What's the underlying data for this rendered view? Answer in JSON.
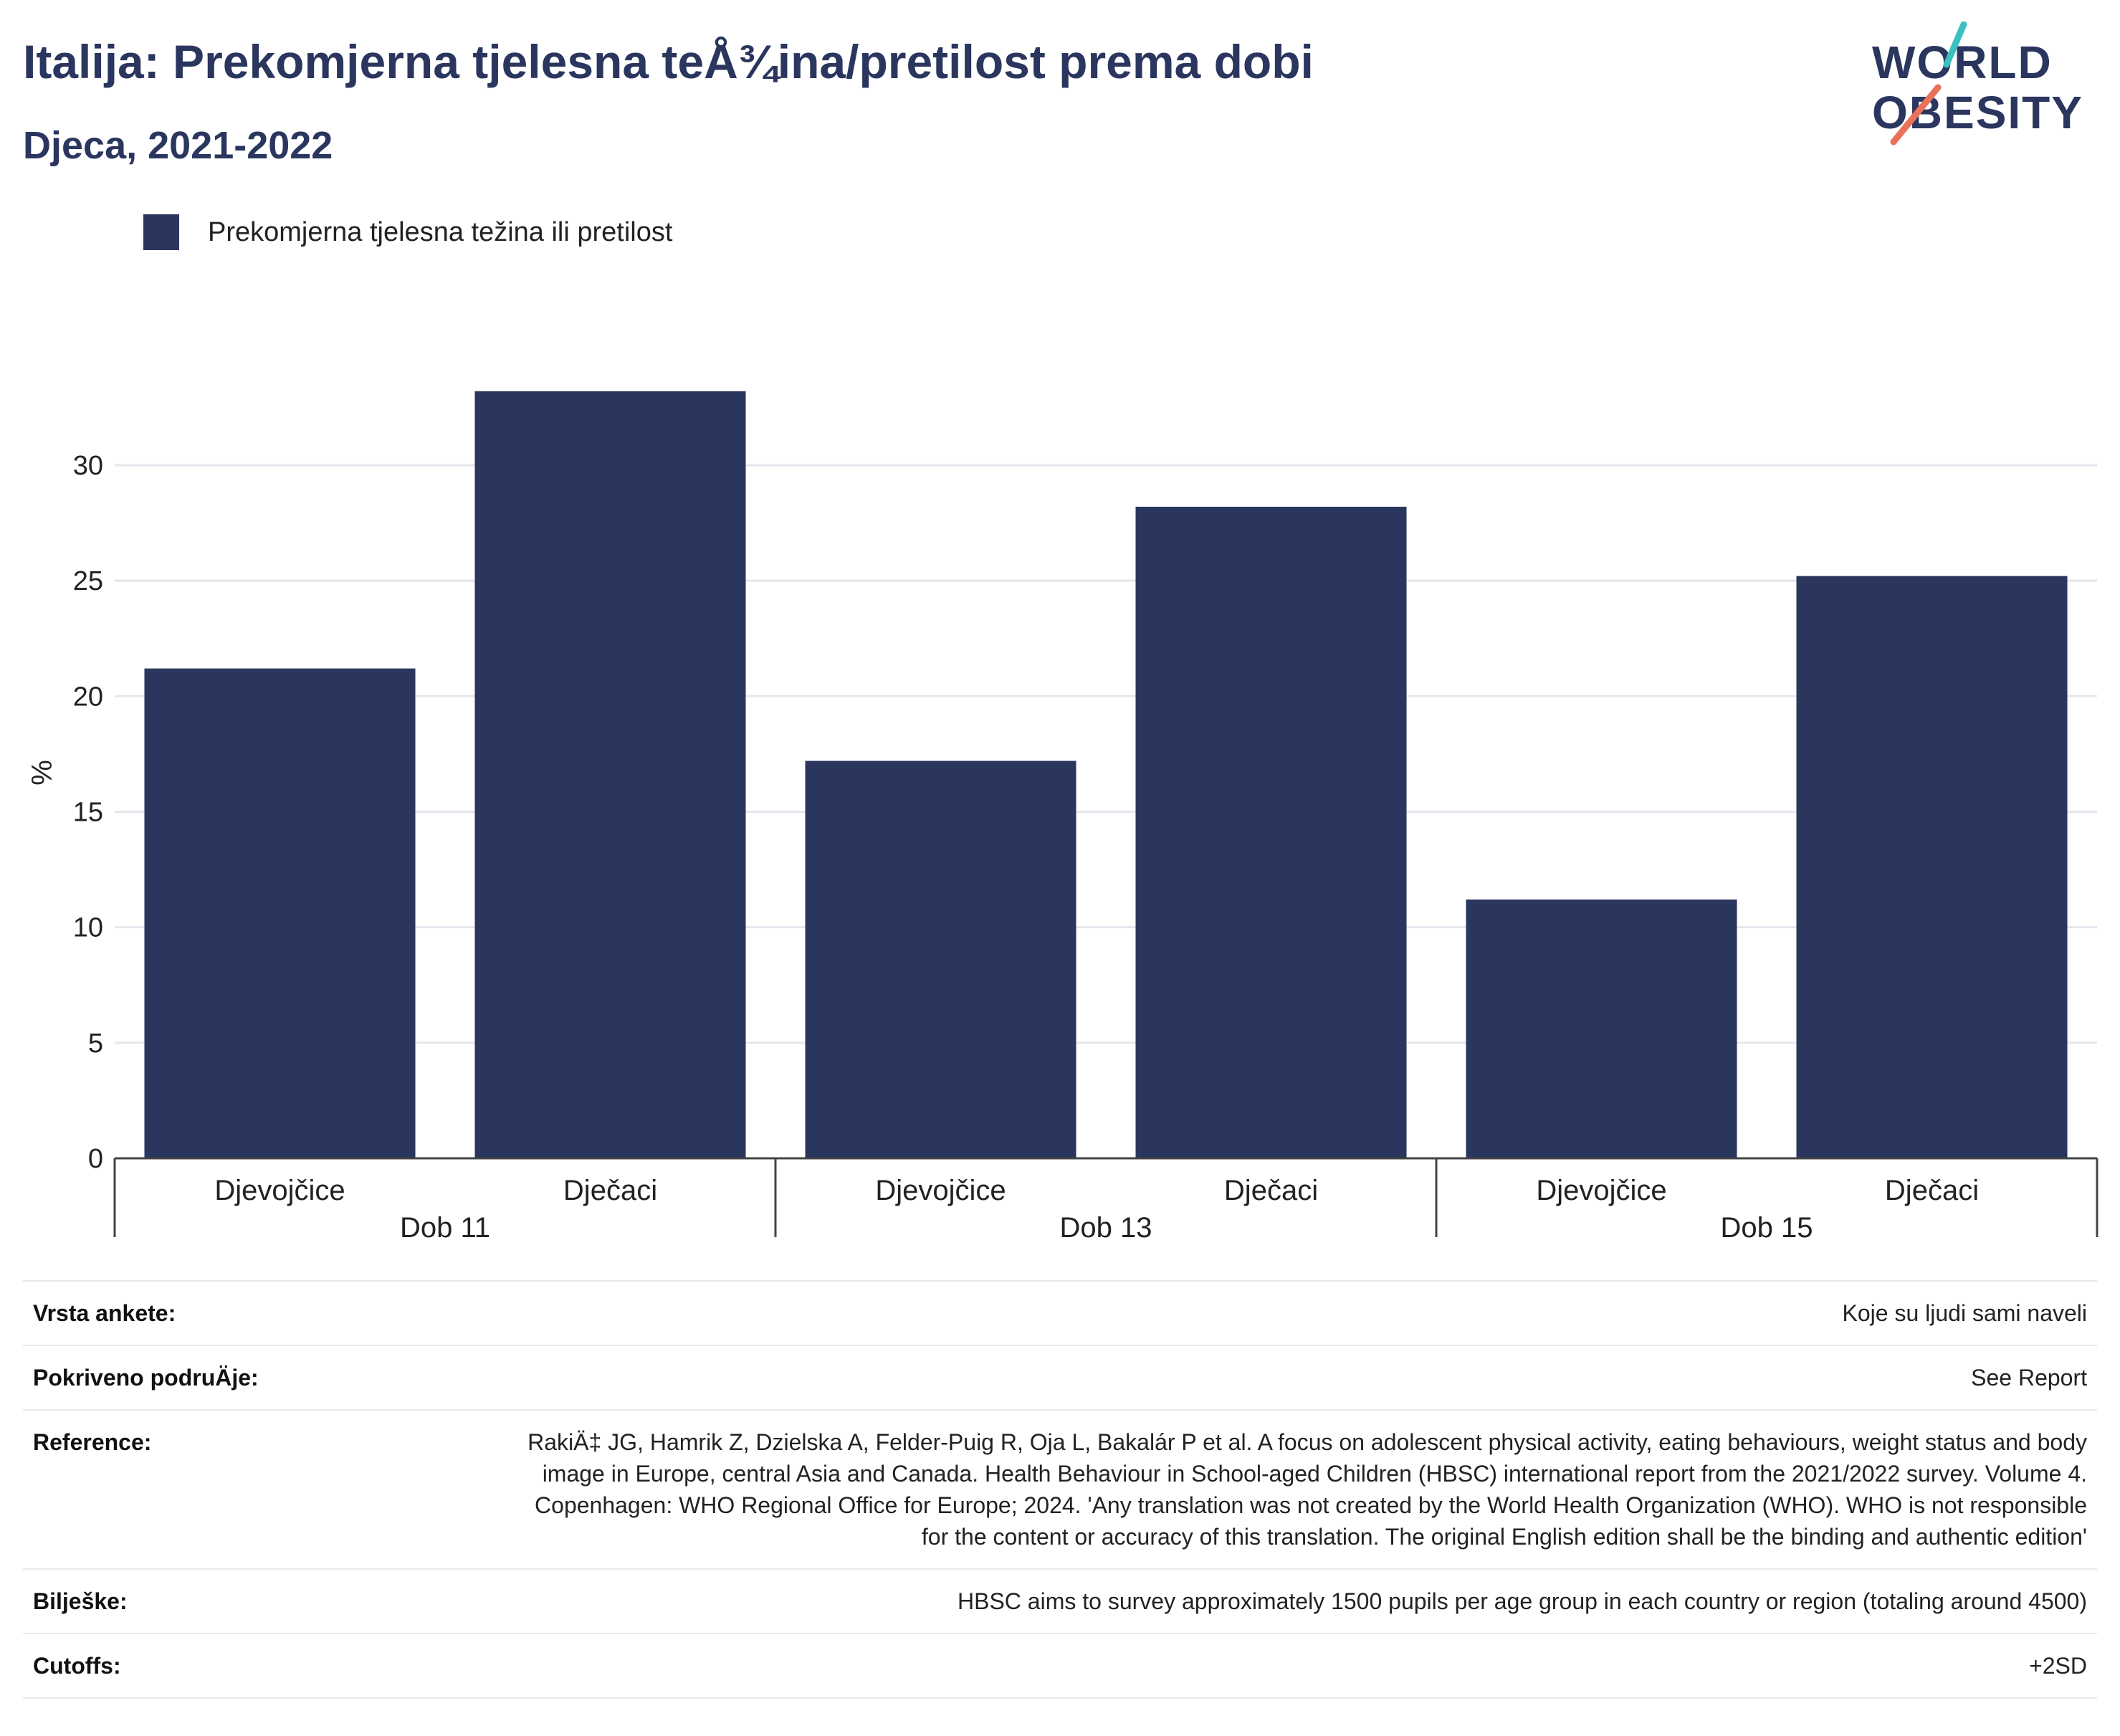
{
  "header": {
    "title": "Italija: Prekomjerna tjelesna teÅ¾ina/pretilost prema dobi",
    "subtitle": "Djeca, 2021-2022"
  },
  "logo": {
    "line1": "WORLD",
    "line2": "OBESITY",
    "colors": {
      "teal": "#3bbfbf",
      "coral": "#e8735a"
    }
  },
  "legend": {
    "label": "Prekomjerna tjelesna težina ili pretilost"
  },
  "colors": {
    "bar": "#2b365f",
    "grid": "#e6e6ee",
    "axis": "#444444"
  },
  "chart_data": {
    "type": "bar",
    "ylabel": "%",
    "ylim": [
      0,
      34
    ],
    "yticks": [
      0,
      5,
      10,
      15,
      20,
      25,
      30
    ],
    "grid": true,
    "groups": [
      {
        "label": "Dob 11",
        "categories": [
          "Djevojčice",
          "Dječaci"
        ],
        "values": [
          21.2,
          33.2
        ]
      },
      {
        "label": "Dob 13",
        "categories": [
          "Djevojčice",
          "Dječaci"
        ],
        "values": [
          17.2,
          28.2
        ]
      },
      {
        "label": "Dob 15",
        "categories": [
          "Djevojčice",
          "Dječaci"
        ],
        "values": [
          11.2,
          25.2
        ]
      }
    ],
    "series": [
      {
        "name": "Prekomjerna tjelesna težina ili pretilost",
        "values": [
          21.2,
          33.2,
          17.2,
          28.2,
          11.2,
          25.2
        ]
      }
    ]
  },
  "info": [
    {
      "key": "Vrsta ankete:",
      "value": "Koje su ljudi sami naveli"
    },
    {
      "key": "Pokriveno podruÄje:",
      "value": "See Report"
    },
    {
      "key": "Reference:",
      "value": "RakiÄ‡ JG, Hamrik Z, Dzielska A, Felder-Puig R, Oja L, Bakalár P et al. A focus on adolescent physical activity, eating behaviours, weight status and body image in Europe, central Asia and Canada. Health Behaviour in School-aged Children (HBSC) international report from the 2021/2022 survey. Volume 4. Copenhagen: WHO Regional Office for Europe; 2024. 'Any translation was not created by the World Health Organization (WHO). WHO is not responsible for the content or accuracy of this translation. The original English edition shall be the binding and authentic edition'"
    },
    {
      "key": "Bilješke:",
      "value": "HBSC aims to survey approximately 1500 pupils per age group in each country or region (totaling around 4500)"
    },
    {
      "key": "Cutoffs:",
      "value": "+2SD"
    }
  ]
}
